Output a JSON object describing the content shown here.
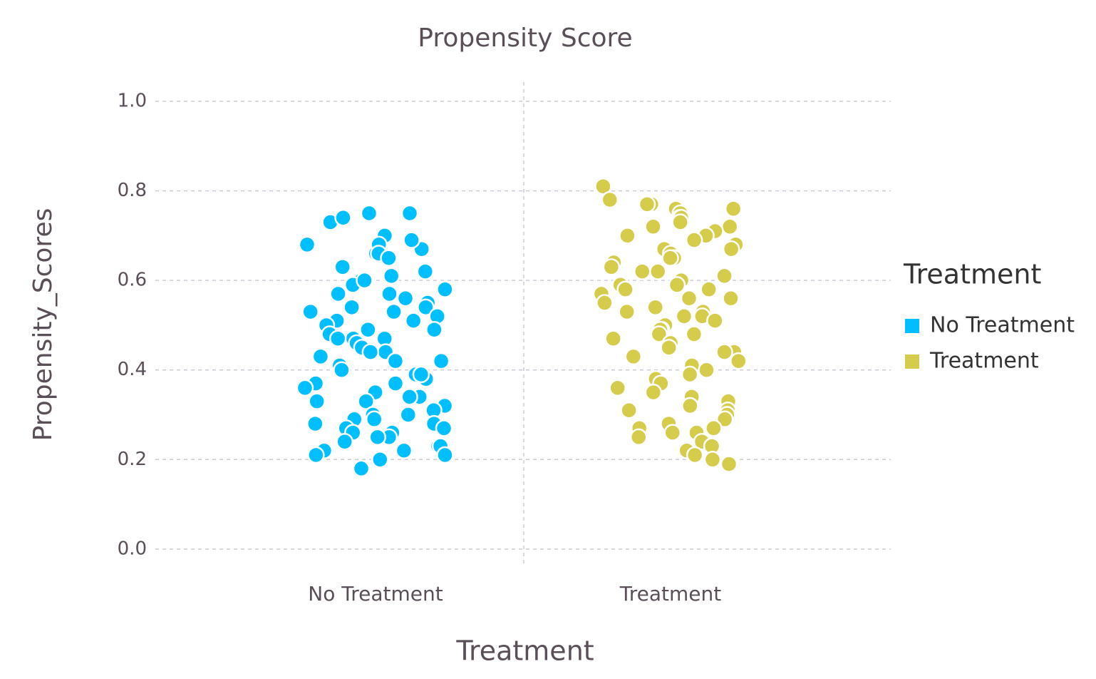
{
  "chart_data": {
    "type": "strip",
    "title": "Propensity Score",
    "xlabel": "Treatment",
    "ylabel": "Propensity_Scores",
    "legend_title": "Treatment",
    "legend_position": "right",
    "grid": true,
    "categories": [
      "No Treatment",
      "Treatment"
    ],
    "ylim": [
      -0.04,
      1.043
    ],
    "yticks": [
      {
        "value": 0,
        "label": "0.0"
      },
      0.2,
      0.4,
      0.6,
      0.8,
      {
        "value": 1,
        "label": "1.0"
      }
    ],
    "series": [
      {
        "name": "No Treatment",
        "color": "#00bfff",
        "values": [
          0.73,
          0.75,
          0.7,
          0.75,
          0.74,
          0.67,
          0.69,
          0.66,
          0.68,
          0.66,
          0.68,
          0.65,
          0.61,
          0.6,
          0.62,
          0.59,
          0.6,
          0.57,
          0.58,
          0.56,
          0.55,
          0.54,
          0.53,
          0.53,
          0.52,
          0.51,
          0.51,
          0.5,
          0.49,
          0.48,
          0.47,
          0.47,
          0.46,
          0.45,
          0.44,
          0.43,
          0.42,
          0.42,
          0.41,
          0.4,
          0.39,
          0.38,
          0.37,
          0.37,
          0.35,
          0.34,
          0.34,
          0.33,
          0.33,
          0.32,
          0.31,
          0.3,
          0.29,
          0.29,
          0.28,
          0.28,
          0.27,
          0.26,
          0.26,
          0.25,
          0.25,
          0.24,
          0.23,
          0.23,
          0.22,
          0.22,
          0.21,
          0.21,
          0.2,
          0.18,
          0.57,
          0.49,
          0.44,
          0.36,
          0.3,
          0.54,
          0.47,
          0.39,
          0.27,
          0.63
        ]
      },
      {
        "name": "Treatment",
        "color": "#d4cc4a",
        "values": [
          0.81,
          0.78,
          0.77,
          0.77,
          0.76,
          0.76,
          0.75,
          0.74,
          0.74,
          0.73,
          0.72,
          0.72,
          0.71,
          0.7,
          0.7,
          0.69,
          0.68,
          0.67,
          0.67,
          0.66,
          0.65,
          0.65,
          0.64,
          0.63,
          0.62,
          0.61,
          0.6,
          0.59,
          0.59,
          0.58,
          0.57,
          0.56,
          0.55,
          0.54,
          0.53,
          0.53,
          0.52,
          0.51,
          0.5,
          0.49,
          0.49,
          0.48,
          0.47,
          0.46,
          0.45,
          0.44,
          0.43,
          0.42,
          0.41,
          0.4,
          0.39,
          0.38,
          0.37,
          0.36,
          0.35,
          0.34,
          0.33,
          0.32,
          0.31,
          0.31,
          0.3,
          0.29,
          0.28,
          0.27,
          0.27,
          0.26,
          0.26,
          0.25,
          0.24,
          0.23,
          0.22,
          0.21,
          0.2,
          0.19,
          0.62,
          0.56,
          0.48,
          0.58,
          0.52,
          0.44
        ]
      }
    ]
  }
}
